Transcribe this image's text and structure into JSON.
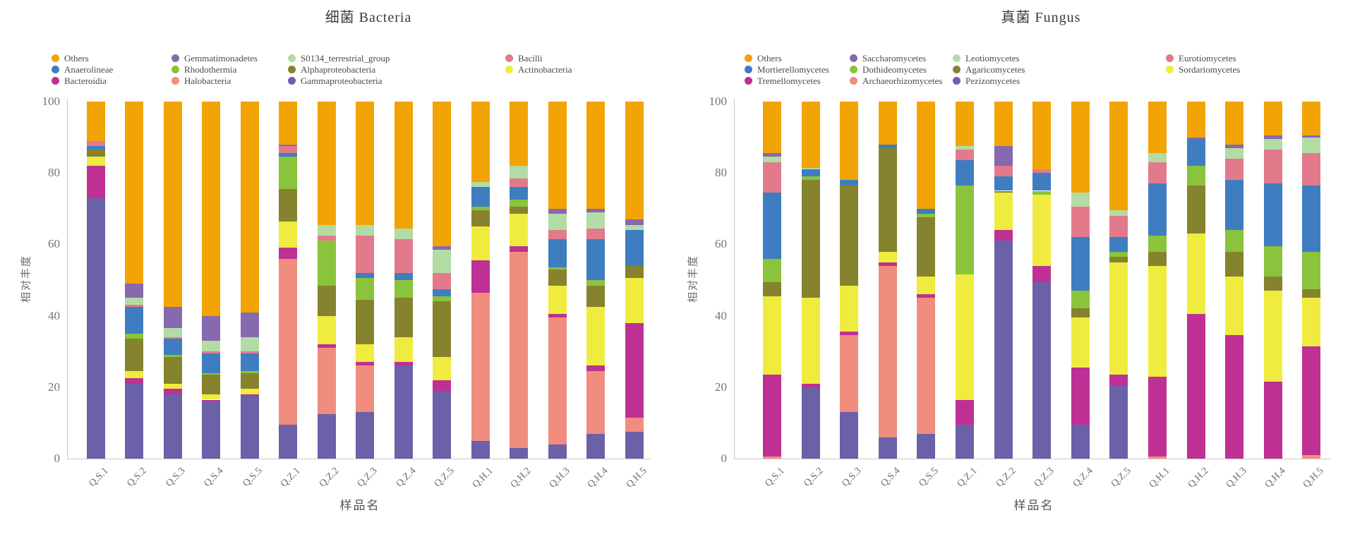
{
  "chart_data": [
    {
      "type": "bar",
      "stacked": true,
      "title": "细菌 Bacteria",
      "xlabel": "样品名",
      "ylabel": "相对丰度",
      "ylim": [
        0,
        100
      ],
      "y_ticks": [
        "0",
        "20",
        "40",
        "60",
        "80",
        "100"
      ],
      "grid": false,
      "legend_position": "top",
      "categories": [
        "Q.S.1",
        "Q.S.2",
        "Q.S.3",
        "Q.S.4",
        "Q.S.5",
        "Q.Z.1",
        "Q.Z.2",
        "Q.Z.3",
        "Q.Z.4",
        "Q.Z.5",
        "Q.H.1",
        "Q.H.2",
        "Q.H.3",
        "Q.H.4",
        "Q.H.5"
      ],
      "series": [
        {
          "name": "Gammaproteobacteria",
          "color": "#6A61A9",
          "values": [
            73,
            21,
            18,
            16,
            17.5,
            9.5,
            12.5,
            13,
            26,
            19,
            5,
            3,
            4,
            7,
            7.5
          ]
        },
        {
          "name": "Halobacteria",
          "color": "#F08D7E",
          "values": [
            0,
            0,
            0,
            0,
            0,
            46.5,
            18.5,
            13,
            0,
            0,
            41.5,
            55,
            35.5,
            17.5,
            4
          ]
        },
        {
          "name": "Bacteroidia",
          "color": "#BE3093",
          "values": [
            9,
            1.5,
            1.5,
            0.5,
            0.5,
            3,
            1,
            1,
            1,
            3,
            9,
            1.5,
            1,
            1.5,
            26.5
          ]
        },
        {
          "name": "Actinobacteria",
          "color": "#EFEC3F",
          "values": [
            2.5,
            2,
            1.5,
            1.5,
            1.5,
            7.5,
            8,
            5,
            7,
            6.5,
            9.5,
            9,
            8,
            16.5,
            12.5
          ]
        },
        {
          "name": "Alphaproteobacteria",
          "color": "#85832D",
          "values": [
            2,
            9,
            7.5,
            5.5,
            4.5,
            9,
            8.5,
            12.5,
            11,
            15.5,
            4.5,
            2,
            4.5,
            6,
            3.5
          ]
        },
        {
          "name": "Rhodothermia",
          "color": "#8AC33C",
          "values": [
            0,
            1.5,
            0.5,
            0.5,
            0.5,
            9,
            12.5,
            6,
            5,
            1.5,
            1,
            2,
            0.5,
            1.5,
            0
          ]
        },
        {
          "name": "Anaerolineae",
          "color": "#3E7EC0",
          "values": [
            1,
            7.5,
            4.5,
            5.5,
            5,
            1,
            0,
            1.5,
            2,
            2,
            5.5,
            3.5,
            8,
            11.5,
            10
          ]
        },
        {
          "name": "Bacilli",
          "color": "#E27A8B",
          "values": [
            1.5,
            0.5,
            0.5,
            0.5,
            0.5,
            2,
            1.5,
            10.5,
            9.5,
            4.5,
            0,
            2.5,
            2.5,
            3,
            0
          ]
        },
        {
          "name": "S0134_terrestrial_group",
          "color": "#B2DCA4",
          "values": [
            0,
            2,
            2.5,
            3,
            4,
            0,
            3,
            3,
            3,
            6.5,
            1.5,
            3.5,
            4.5,
            4.5,
            1.5
          ]
        },
        {
          "name": "Gemmatimonadetes",
          "color": "#8669AE",
          "values": [
            0,
            4,
            6,
            7,
            7,
            0.5,
            0,
            0,
            0,
            1,
            0,
            0,
            1.5,
            1,
            1.5
          ]
        },
        {
          "name": "Others",
          "color": "#F2A405",
          "values": [
            11,
            51,
            57.5,
            60,
            59,
            12,
            34.5,
            34.5,
            35.5,
            40.5,
            22.5,
            18,
            30,
            30,
            33
          ]
        }
      ],
      "legend_columns": [
        [
          "Others",
          "Anaerolineae",
          "Bacteroidia"
        ],
        [
          "Gemmatimonadetes",
          "Rhodothermia",
          "Halobacteria"
        ],
        [
          "S0134_terrestrial_group",
          "Alphaproteobacteria",
          "Gammaproteobacteria"
        ],
        [
          "Bacilli",
          "Actinobacteria"
        ]
      ]
    },
    {
      "type": "bar",
      "stacked": true,
      "title": "真菌 Fungus",
      "xlabel": "样品名",
      "ylabel": "相对丰度",
      "ylim": [
        0,
        100
      ],
      "y_ticks": [
        "0",
        "20",
        "40",
        "60",
        "80",
        "100"
      ],
      "grid": false,
      "legend_position": "top",
      "categories": [
        "Q.S.1",
        "Q.S.2",
        "Q.S.3",
        "Q.S.4",
        "Q.S.5",
        "Q.Z.1",
        "Q.Z.2",
        "Q.Z.3",
        "Q.Z.4",
        "Q.Z.5",
        "Q.H.1",
        "Q.H.2",
        "Q.H.3",
        "Q.H.4",
        "Q.H.5"
      ],
      "series": [
        {
          "name": "Pezizomycetes",
          "color": "#6A61A9",
          "values": [
            0,
            20,
            13,
            6,
            7,
            9.5,
            61,
            49.5,
            9.5,
            20.5,
            0,
            0,
            0,
            0,
            0
          ]
        },
        {
          "name": "Archaeorhizomycetes",
          "color": "#F08D7E",
          "values": [
            0.5,
            0,
            21.5,
            48,
            38,
            0,
            0,
            0,
            0,
            0,
            0.5,
            0,
            0,
            0,
            1
          ]
        },
        {
          "name": "Tremellomycetes",
          "color": "#BE3093",
          "values": [
            23,
            1,
            1,
            1,
            1,
            7,
            3,
            4.5,
            16,
            3,
            22.5,
            40.5,
            34.5,
            21.5,
            30.5
          ]
        },
        {
          "name": "Sordariomycetes",
          "color": "#EFEC3F",
          "values": [
            22,
            24,
            13,
            3,
            5,
            35,
            10.5,
            20,
            14,
            31.5,
            31,
            22.5,
            16.5,
            25.5,
            13.5
          ]
        },
        {
          "name": "Agaricomycetes",
          "color": "#85832D",
          "values": [
            4,
            33,
            28,
            29,
            16.5,
            0,
            0.5,
            0,
            2.5,
            1.5,
            4,
            13.5,
            7,
            4,
            2.5
          ]
        },
        {
          "name": "Dothideomycetes",
          "color": "#8AC33C",
          "values": [
            6.5,
            1,
            0,
            0,
            1,
            25,
            0,
            1,
            5,
            1.5,
            4.5,
            5.5,
            6,
            8.5,
            10.5
          ]
        },
        {
          "name": "Mortierellomycetes",
          "color": "#3E7EC0",
          "values": [
            18.5,
            2,
            1.5,
            1,
            1.5,
            7,
            4,
            5,
            15,
            4,
            14.5,
            7.5,
            14,
            17.5,
            18.5
          ]
        },
        {
          "name": "Eurotiomycetes",
          "color": "#E27A8B",
          "values": [
            8.5,
            0,
            0,
            0,
            0,
            3,
            3,
            1,
            8.5,
            6,
            6,
            0,
            6,
            9.5,
            9
          ]
        },
        {
          "name": "Leotiomycetes",
          "color": "#B2DCA4",
          "values": [
            1.5,
            0.5,
            0,
            0,
            0,
            1,
            0,
            0,
            4,
            1.5,
            2.5,
            0,
            3,
            3,
            4.5
          ]
        },
        {
          "name": "Saccharomycetes",
          "color": "#8669AE",
          "values": [
            1,
            0,
            0,
            0,
            0,
            0,
            5.5,
            0,
            0,
            0,
            0,
            0.5,
            1,
            1,
            0.5
          ]
        },
        {
          "name": "Others",
          "color": "#F2A405",
          "values": [
            14.5,
            18.5,
            22,
            12,
            30,
            12.5,
            12.5,
            19,
            25.5,
            30.5,
            14.5,
            10,
            12,
            9.5,
            9.5
          ]
        }
      ],
      "legend_columns": [
        [
          "Others",
          "Mortierellomycetes",
          "Tremellomycetes"
        ],
        [
          "Saccharomycetes",
          "Dothideomycetes",
          "Archaeorhizomycetes"
        ],
        [
          "Leotiomycetes",
          "Agaricomycetes",
          "Pezizomycetes"
        ],
        [
          "Eurotiomycetes",
          "Sordariomycetes"
        ]
      ]
    }
  ]
}
